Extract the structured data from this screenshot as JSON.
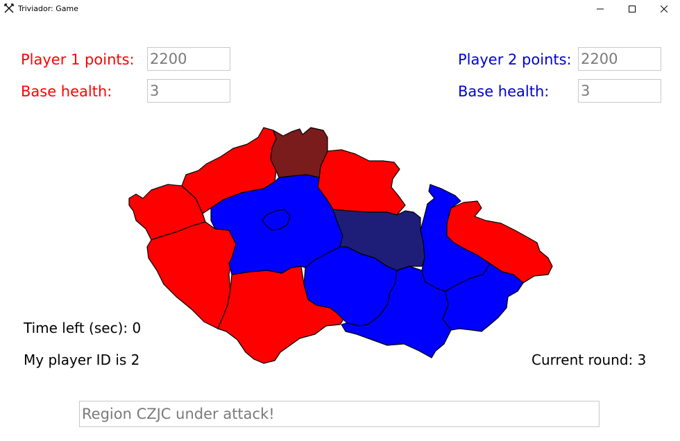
{
  "window": {
    "title": "Triviador: Game",
    "icons": {
      "app": "crossed-swords-icon",
      "minimize": "minimize-icon",
      "maximize": "maximize-icon",
      "close": "close-icon"
    }
  },
  "player1": {
    "points_label": "Player 1 points:",
    "points_value": "2200",
    "health_label": "Base health:",
    "health_value": "3",
    "color": "#ff0000"
  },
  "player2": {
    "points_label": "Player 2 points:",
    "points_value": "2200",
    "health_label": "Base health:",
    "health_value": "3",
    "color": "#0000d4"
  },
  "info": {
    "time_left": "Time left (sec): 0",
    "player_id": "My player ID is 2",
    "current_round": "Current round: 3"
  },
  "status": {
    "message": "Region CZJC under attack!"
  },
  "map": {
    "colors": {
      "player1": "#ff0000",
      "player2": "#0000ff",
      "player1_base": "#7b1c1c",
      "player2_base": "#1e1e78"
    }
  }
}
